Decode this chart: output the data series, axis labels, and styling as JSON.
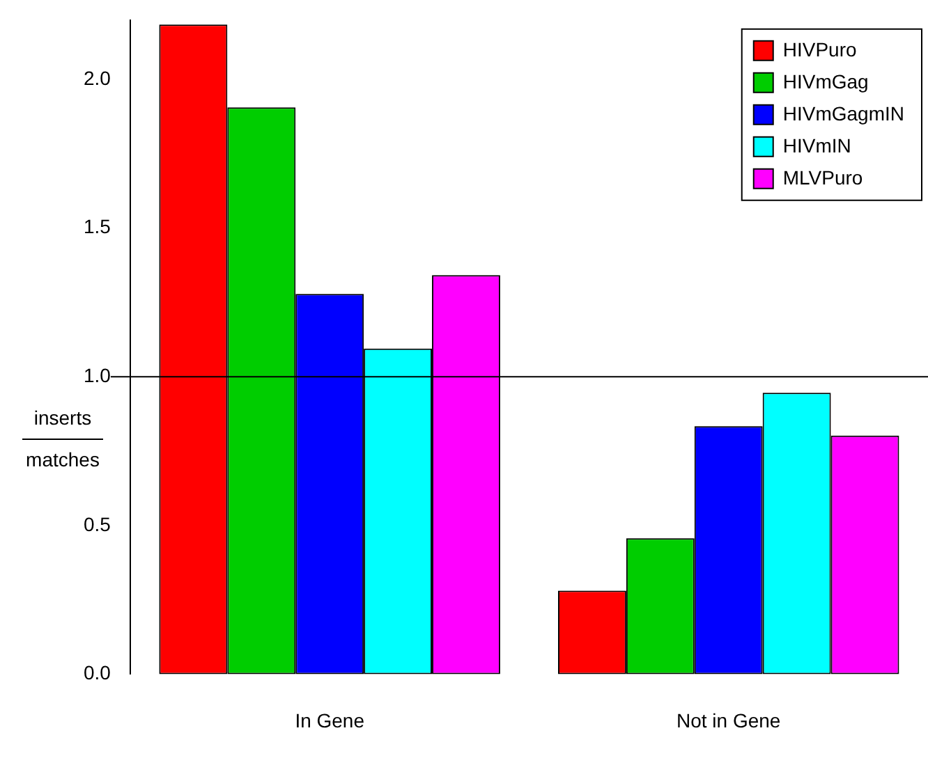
{
  "chart_data": {
    "type": "bar",
    "ylabel": "inserts\nmatches",
    "categories": [
      "In Gene",
      "Not in Gene"
    ],
    "series": [
      {
        "name": "HIVPuro",
        "color": "#ff0000",
        "values": [
          2.185,
          0.281
        ]
      },
      {
        "name": "HIVmGag",
        "color": "#00cd00",
        "values": [
          1.906,
          0.457
        ]
      },
      {
        "name": "HIVmGagmIN",
        "color": "#0000ff",
        "values": [
          1.279,
          0.834
        ]
      },
      {
        "name": "HIVmIN",
        "color": "#00ffff",
        "values": [
          1.095,
          0.946
        ]
      },
      {
        "name": "MLVPuro",
        "color": "#ff00ff",
        "values": [
          1.342,
          0.802
        ]
      }
    ],
    "ylim": [
      0,
      2.2
    ],
    "yticks": [
      {
        "value": 0,
        "label": "0.0"
      },
      0.5,
      {
        "value": 1,
        "label": "1.0"
      },
      1.5,
      {
        "value": 2,
        "label": "2.0"
      }
    ],
    "ref_lines": [
      {
        "axis": "y",
        "value": 1
      }
    ],
    "grid": false,
    "legend": "top right"
  }
}
